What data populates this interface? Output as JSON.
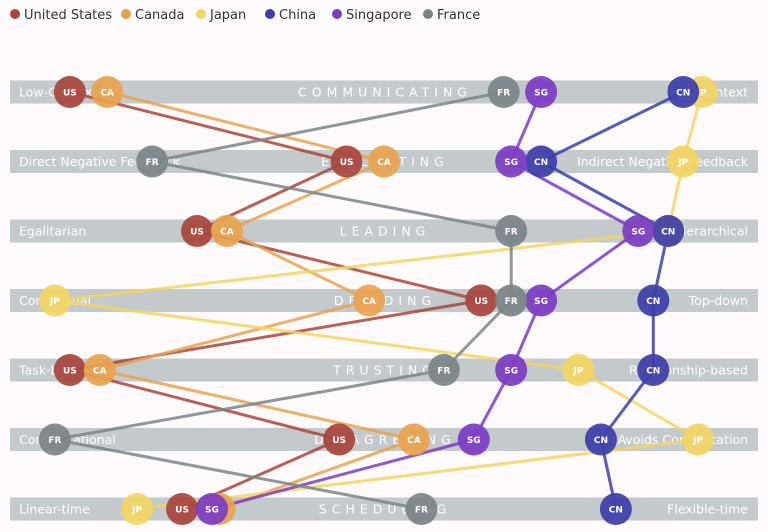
{
  "chart_data": {
    "type": "line",
    "series": [
      {
        "name": "United States",
        "code": "US",
        "color": "#a8463c",
        "values": [
          0.08,
          0.45,
          0.25,
          0.63,
          0.08,
          0.44,
          0.23
        ]
      },
      {
        "name": "Canada",
        "code": "CA",
        "color": "#e8a24f",
        "values": [
          0.13,
          0.5,
          0.29,
          0.48,
          0.12,
          0.54,
          0.28
        ]
      },
      {
        "name": "Japan",
        "code": "JP",
        "color": "#f2d564",
        "values": [
          0.925,
          0.9,
          0.88,
          0.06,
          0.76,
          0.92,
          0.17
        ]
      },
      {
        "name": "China",
        "code": "CN",
        "color": "#3d3ea8",
        "values": [
          0.9,
          0.71,
          0.88,
          0.86,
          0.86,
          0.79,
          0.81
        ]
      },
      {
        "name": "Singapore",
        "code": "SG",
        "color": "#7c3cc2",
        "values": [
          0.71,
          0.67,
          0.84,
          0.71,
          0.67,
          0.62,
          0.27
        ]
      },
      {
        "name": "France",
        "code": "FR",
        "color": "#7b8586",
        "values": [
          0.66,
          0.19,
          0.67,
          0.67,
          0.58,
          0.06,
          0.55
        ]
      }
    ],
    "scales": [
      {
        "left": "Low-Context",
        "center": "COMMUNICATING",
        "right": "High-Context"
      },
      {
        "left": "Direct Negative Feedback",
        "center": "EVALUATING",
        "right": "Indirect Negative Feedback"
      },
      {
        "left": "Egalitarian",
        "center": "LEADING",
        "right": "Hierarchical"
      },
      {
        "left": "Consensual",
        "center": "DECIDING",
        "right": "Top-down"
      },
      {
        "left": "Task-based",
        "center": "TRUSTING",
        "right": "Relationship-based"
      },
      {
        "left": "Confrontational",
        "center": "DISAGREEING",
        "right": "Avoids Confrontation"
      },
      {
        "left": "Linear-time",
        "center": "SCHEDULING",
        "right": "Flexible-time"
      }
    ],
    "xlim": [
      0,
      1
    ],
    "legend_position": "top-left",
    "grid": false
  }
}
